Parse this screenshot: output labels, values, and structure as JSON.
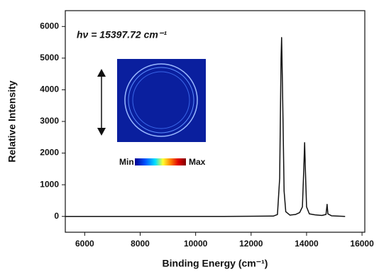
{
  "chart_data": {
    "type": "line",
    "annotation": "hν = 15397.72 cm⁻¹",
    "x_label": "Binding Energy (cm⁻¹)",
    "y_label": "Relative Intensity",
    "inset_min_label": "Min",
    "inset_max_label": "Max",
    "color": "#111111",
    "x": [
      5300,
      6000,
      7000,
      8000,
      9000,
      10000,
      11000,
      12000,
      12800,
      12950,
      13030,
      13080,
      13100,
      13130,
      13190,
      13250,
      13400,
      13600,
      13750,
      13850,
      13900,
      13930,
      13960,
      14000,
      14100,
      14300,
      14550,
      14700,
      14740,
      14770,
      14900,
      15390
    ],
    "values": [
      0,
      0,
      0,
      0,
      0,
      0,
      0,
      5,
      10,
      60,
      1200,
      5000,
      5650,
      4200,
      800,
      150,
      40,
      60,
      120,
      300,
      1500,
      2330,
      1400,
      300,
      80,
      50,
      30,
      60,
      380,
      80,
      20,
      0
    ],
    "xlim": [
      5300,
      16100
    ],
    "ylim": [
      -500,
      6500
    ],
    "xticks": [
      6000,
      8000,
      10000,
      12000,
      14000,
      16000
    ],
    "yticks": [
      0,
      1000,
      2000,
      3000,
      4000,
      5000,
      6000
    ]
  }
}
